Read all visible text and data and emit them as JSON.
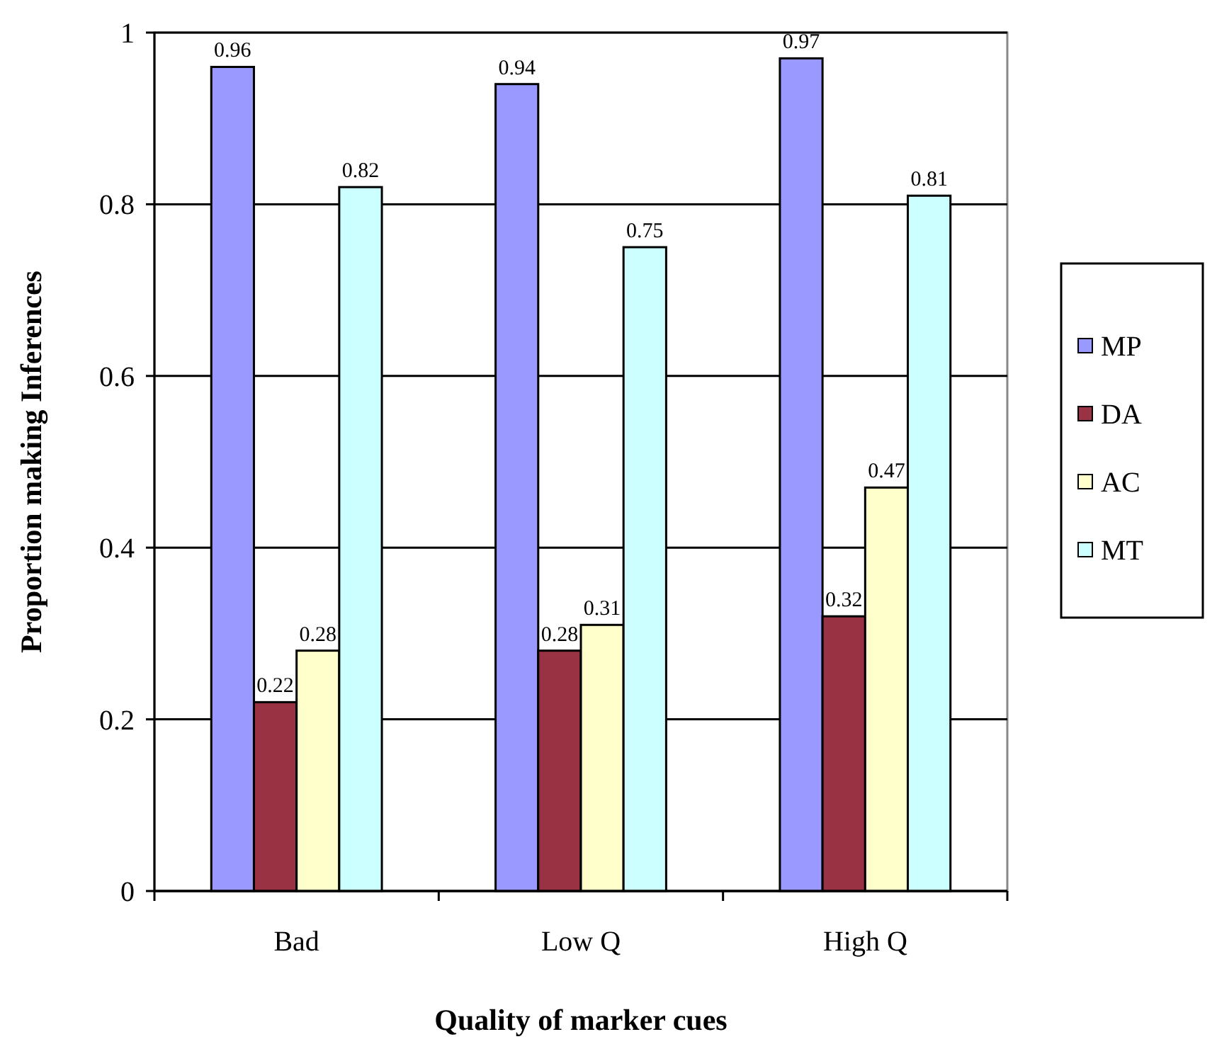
{
  "chart_data": {
    "type": "bar",
    "xlabel": "Quality of marker cues",
    "ylabel": "Proportion making Inferences",
    "categories": [
      "Bad",
      "Low Q",
      "High Q"
    ],
    "series": [
      {
        "name": "MP",
        "color": "#9999ff",
        "values": [
          0.96,
          0.94,
          0.97
        ]
      },
      {
        "name": "DA",
        "color": "#993344",
        "values": [
          0.22,
          0.28,
          0.32
        ]
      },
      {
        "name": "AC",
        "color": "#ffffcc",
        "values": [
          0.28,
          0.31,
          0.47
        ]
      },
      {
        "name": "MT",
        "color": "#ccffff",
        "values": [
          0.82,
          0.75,
          0.81
        ]
      }
    ],
    "ylim": [
      0,
      1
    ],
    "yticks": [
      0,
      0.2,
      0.4,
      0.6,
      0.8,
      1
    ],
    "grid": "y",
    "legend": "right",
    "data_labels": true
  }
}
